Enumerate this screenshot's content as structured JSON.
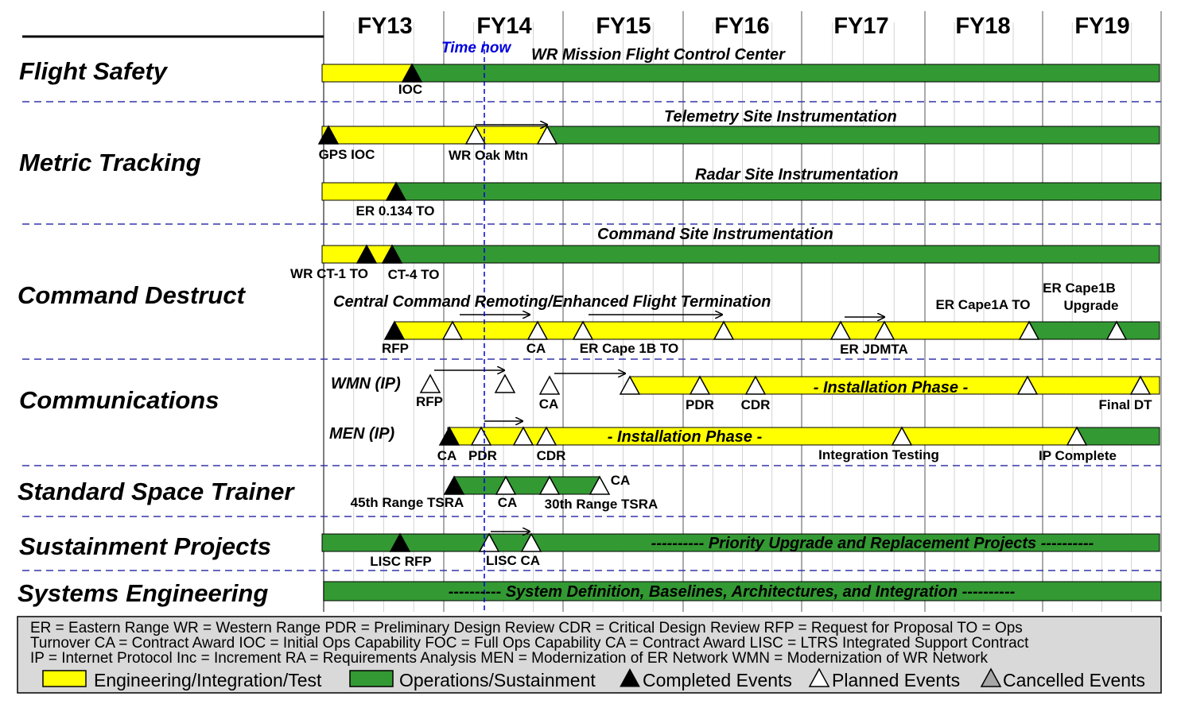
{
  "colors": {
    "engineering": "#ffff00",
    "operations": "#339933",
    "time_now": "#0000dd",
    "separator": "#3333aa",
    "legend_bg": "#d9d9d9"
  },
  "fiscal_years": [
    "FY13",
    "FY14",
    "FY15",
    "FY16",
    "FY17",
    "FY18",
    "FY19"
  ],
  "time_now_label": "Time  now",
  "categories": [
    {
      "id": "flight-safety",
      "label": "Flight Safety"
    },
    {
      "id": "metric-tracking",
      "label": "Metric Tracking"
    },
    {
      "id": "command-destruct",
      "label": "Command Destruct"
    },
    {
      "id": "communications",
      "label": "Communications"
    },
    {
      "id": "standard-space-trainer",
      "label": "Standard Space Trainer"
    },
    {
      "id": "sustainment-projects",
      "label": "Sustainment  Projects"
    },
    {
      "id": "systems-engineering",
      "label": "Systems Engineering"
    }
  ],
  "programs": {
    "wr_mission": "WR Mission Flight Control Center",
    "telemetry": "Telemetry Site Instrumentation",
    "radar": "Radar Site Instrumentation",
    "command_site": "Command Site Instrumentation",
    "central_command": "Central Command Remoting/Enhanced Flight Termination",
    "wmn": "WMN (IP)",
    "men": "MEN (IP)",
    "wmn_phase": "- Installation Phase -",
    "men_phase": "- Installation Phase -",
    "priority": "---------- Priority Upgrade and Replacement Projects ----------",
    "system_def": "---------- System Definition, Baselines, Architectures, and Integration ----------"
  },
  "milestones": {
    "ioc": "IOC",
    "gps_ioc": "GPS IOC",
    "wr_oak": "WR Oak Mtn",
    "er_0134": "ER  0.134 TO",
    "wr_ct1": "WR CT-1 TO",
    "ct4": "CT-4 TO",
    "ccr_rfp": "RFP",
    "ccr_ca": "CA",
    "er_cape1b_to": "ER Cape 1B TO",
    "er_jdmta": "ER JDMTA",
    "er_cape1a": "ER Cape1A TO",
    "er_cape1b_up_1": "ER Cape1B",
    "er_cape1b_up_2": "Upgrade",
    "wmn_rfp": "RFP",
    "wmn_ca": "CA",
    "wmn_pdr": "PDR",
    "wmn_cdr": "CDR",
    "final_dt": "Final DT",
    "men_ca": "CA",
    "men_pdr": "PDR",
    "men_cdr": "CDR",
    "integration_testing": "Integration Testing",
    "ip_complete": "IP Complete",
    "tsra45": "45th Range TSRA",
    "sst_ca": "CA",
    "tsra30": "30th Range TSRA",
    "sst_ca2": "CA",
    "lisc_rfp": "LISC RFP",
    "lisc_ca": "LISC CA"
  },
  "legend": {
    "line1": "ER = Eastern Range  WR = Western Range  PDR = Preliminary Design Review  CDR = Critical Design Review  RFP = Request for Proposal  TO = Ops",
    "line2": "Turnover  CA = Contract Award  IOC = Initial Ops Capability  FOC = Full Ops Capability  CA = Contract Award  LISC = LTRS Integrated Support Contract",
    "line3": "IP = Internet Protocol  Inc = Increment  RA = Requirements Analysis  MEN = Modernization of ER Network  WMN = Modernization of WR Network",
    "engineering": "Engineering/Integration/Test",
    "operations": "Operations/Sustainment",
    "completed": "Completed Events",
    "planned": "Planned Events",
    "cancelled": "Cancelled Events"
  }
}
